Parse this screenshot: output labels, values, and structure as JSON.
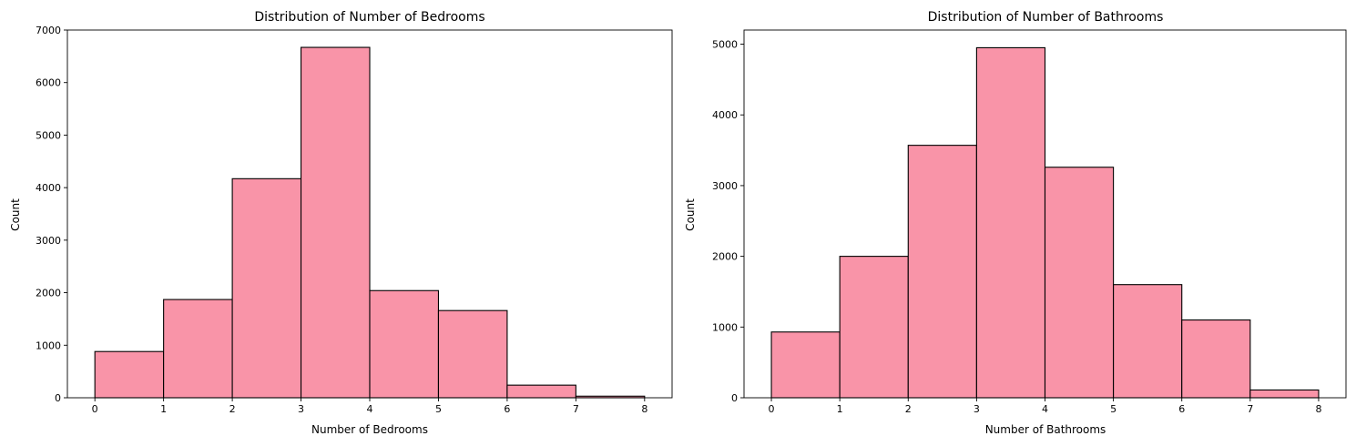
{
  "chart_data": [
    {
      "type": "bar",
      "title": "Distribution of Number of Bedrooms",
      "xlabel": "Number of Bedrooms",
      "ylabel": "Count",
      "bin_edges": [
        0,
        1,
        2,
        3,
        4,
        5,
        6,
        7,
        8
      ],
      "values": [
        880,
        1870,
        4170,
        6670,
        2040,
        1660,
        240,
        30
      ],
      "xticks": [
        0,
        1,
        2,
        3,
        4,
        5,
        6,
        7,
        8
      ],
      "yticks": [
        0,
        1000,
        2000,
        3000,
        4000,
        5000,
        6000,
        7000
      ],
      "xlim": [
        -0.4,
        8.4
      ],
      "ylim": [
        0,
        7000
      ],
      "bar_color": "#f994a8",
      "grid": false,
      "legend": "none"
    },
    {
      "type": "bar",
      "title": "Distribution of Number of Bathrooms",
      "xlabel": "Number of Bathrooms",
      "ylabel": "Count",
      "bin_edges": [
        0,
        1,
        2,
        3,
        4,
        5,
        6,
        7,
        8
      ],
      "values": [
        930,
        2000,
        3570,
        4950,
        3260,
        1600,
        1100,
        110
      ],
      "xticks": [
        0,
        1,
        2,
        3,
        4,
        5,
        6,
        7,
        8
      ],
      "yticks": [
        0,
        1000,
        2000,
        3000,
        4000,
        5000
      ],
      "xlim": [
        -0.4,
        8.4
      ],
      "ylim": [
        0,
        5200
      ],
      "bar_color": "#f994a8",
      "grid": false,
      "legend": "none"
    }
  ]
}
